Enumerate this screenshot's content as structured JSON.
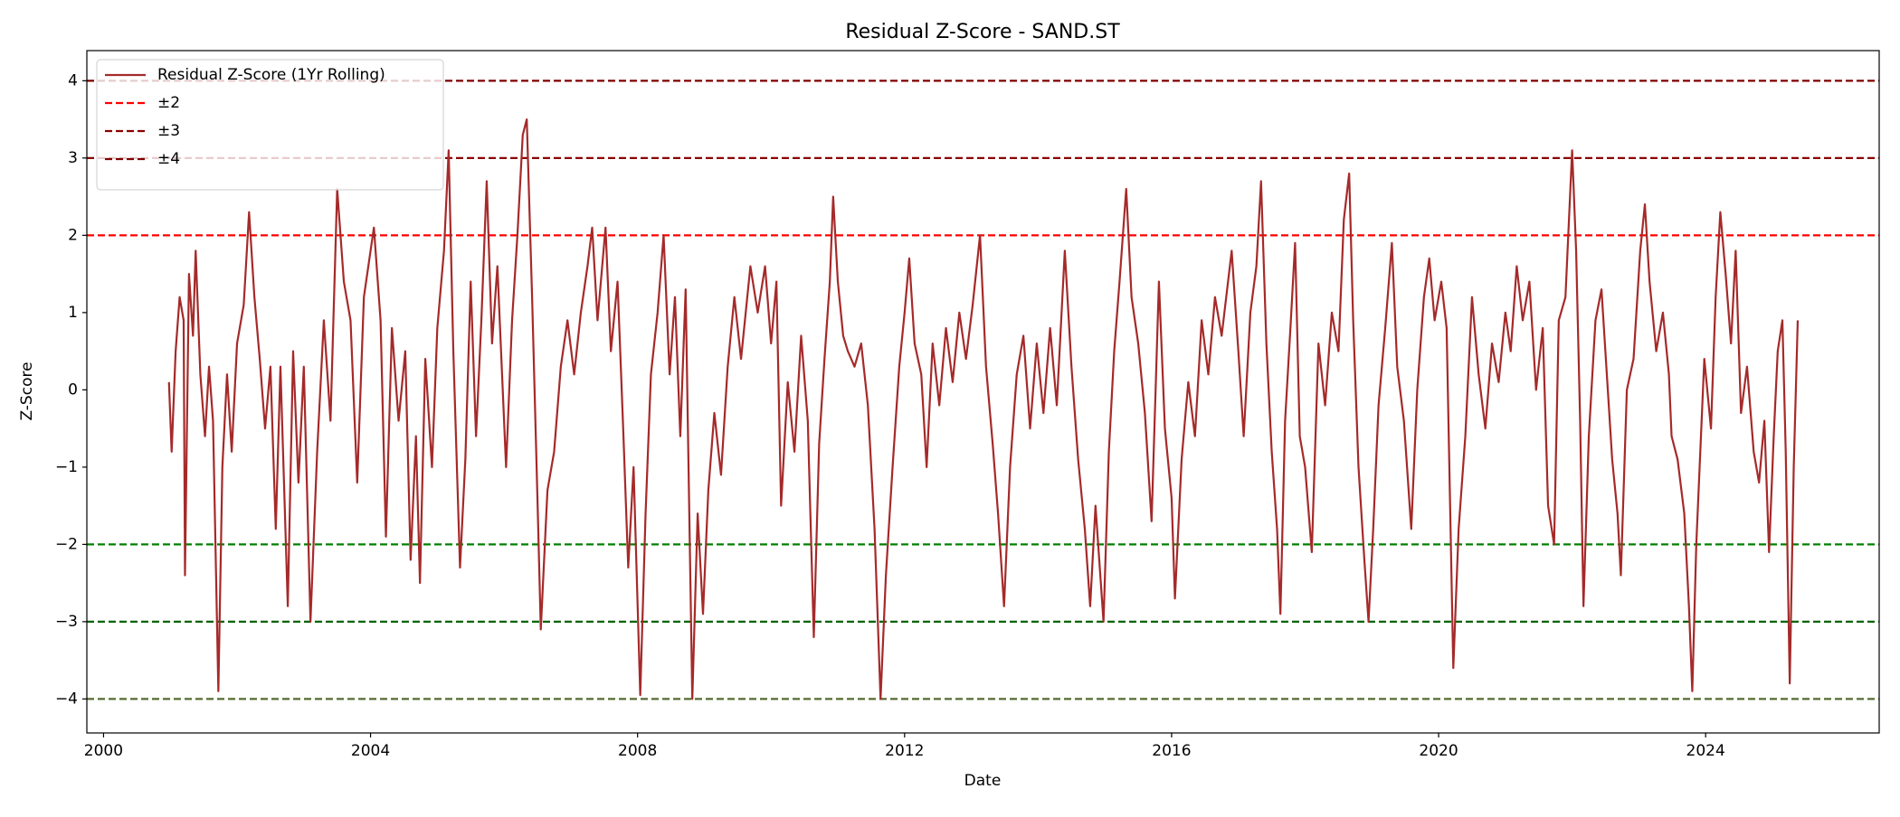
{
  "chart_data": {
    "type": "line",
    "title": "Residual Z-Score - SAND.ST",
    "x_label": "Date",
    "y_label": "Z-Score",
    "xlim": [
      1999.75,
      2026.6
    ],
    "ylim": [
      -4.44,
      4.39
    ],
    "xticks": [
      2000,
      2004,
      2008,
      2012,
      2016,
      2020,
      2024
    ],
    "yticks": [
      {
        "value": -4,
        "label": "−4"
      },
      {
        "value": -3,
        "label": "−3"
      },
      {
        "value": -2,
        "label": "−2"
      },
      {
        "value": -1,
        "label": "−1"
      },
      0,
      1,
      2,
      3,
      4
    ],
    "grid": false,
    "legend": "upper left",
    "reference_lines": [
      {
        "name": "±2",
        "levels": [
          2,
          -2
        ],
        "colors": [
          "#ff0000",
          "#008000"
        ]
      },
      {
        "name": "±3",
        "levels": [
          3,
          -3
        ],
        "colors": [
          "#8b0000",
          "#006400"
        ]
      },
      {
        "name": "±4",
        "levels": [
          4,
          -4
        ],
        "colors": [
          "#800000",
          "#556b2f"
        ]
      }
    ],
    "x": [
      2000.98,
      2001.02,
      2001.08,
      2001.14,
      2001.2,
      2001.22,
      2001.28,
      2001.34,
      2001.38,
      2001.45,
      2001.52,
      2001.58,
      2001.64,
      2001.72,
      2001.78,
      2001.85,
      2001.92,
      2002.0,
      2002.1,
      2002.18,
      2002.26,
      2002.34,
      2002.42,
      2002.5,
      2002.58,
      2002.65,
      2002.76,
      2002.84,
      2002.92,
      2003.0,
      2003.1,
      2003.2,
      2003.3,
      2003.4,
      2003.5,
      2003.6,
      2003.7,
      2003.8,
      2003.9,
      2004.05,
      2004.15,
      2004.23,
      2004.32,
      2004.42,
      2004.52,
      2004.6,
      2004.68,
      2004.74,
      2004.82,
      2004.92,
      2005.0,
      2005.1,
      2005.17,
      2005.24,
      2005.34,
      2005.42,
      2005.5,
      2005.58,
      2005.66,
      2005.74,
      2005.82,
      2005.9,
      2006.03,
      2006.12,
      2006.2,
      2006.28,
      2006.34,
      2006.42,
      2006.5,
      2006.55,
      2006.65,
      2006.75,
      2006.85,
      2006.95,
      2007.05,
      2007.15,
      2007.25,
      2007.32,
      2007.4,
      2007.52,
      2007.6,
      2007.7,
      2007.78,
      2007.86,
      2007.94,
      2008.04,
      2008.12,
      2008.2,
      2008.3,
      2008.39,
      2008.48,
      2008.56,
      2008.64,
      2008.72,
      2008.82,
      2008.9,
      2008.98,
      2009.06,
      2009.15,
      2009.25,
      2009.35,
      2009.45,
      2009.55,
      2009.69,
      2009.8,
      2009.91,
      2010.0,
      2010.08,
      2010.15,
      2010.25,
      2010.35,
      2010.45,
      2010.55,
      2010.64,
      2010.72,
      2010.8,
      2010.88,
      2010.93,
      2011.0,
      2011.08,
      2011.15,
      2011.25,
      2011.35,
      2011.45,
      2011.55,
      2011.64,
      2011.72,
      2011.82,
      2011.92,
      2012.0,
      2012.07,
      2012.15,
      2012.25,
      2012.33,
      2012.42,
      2012.52,
      2012.62,
      2012.72,
      2012.82,
      2012.92,
      2013.02,
      2013.13,
      2013.22,
      2013.32,
      2013.4,
      2013.49,
      2013.58,
      2013.68,
      2013.78,
      2013.88,
      2013.98,
      2014.08,
      2014.18,
      2014.28,
      2014.4,
      2014.5,
      2014.6,
      2014.7,
      2014.78,
      2014.86,
      2014.98,
      2015.06,
      2015.14,
      2015.22,
      2015.32,
      2015.4,
      2015.5,
      2015.6,
      2015.7,
      2015.81,
      2015.9,
      2016.0,
      2016.05,
      2016.15,
      2016.25,
      2016.35,
      2016.45,
      2016.55,
      2016.65,
      2016.75,
      2016.9,
      2017.0,
      2017.08,
      2017.18,
      2017.27,
      2017.34,
      2017.42,
      2017.5,
      2017.58,
      2017.63,
      2017.7,
      2017.78,
      2017.85,
      2017.92,
      2018.0,
      2018.1,
      2018.2,
      2018.3,
      2018.4,
      2018.5,
      2018.58,
      2018.66,
      2018.72,
      2018.8,
      2018.88,
      2018.95,
      2019.02,
      2019.1,
      2019.2,
      2019.3,
      2019.38,
      2019.48,
      2019.59,
      2019.68,
      2019.78,
      2019.86,
      2019.94,
      2020.04,
      2020.12,
      2020.22,
      2020.3,
      2020.4,
      2020.5,
      2020.6,
      2020.7,
      2020.8,
      2020.9,
      2021.0,
      2021.08,
      2021.17,
      2021.26,
      2021.36,
      2021.46,
      2021.56,
      2021.64,
      2021.73,
      2021.8,
      2021.9,
      2022.0,
      2022.06,
      2022.12,
      2022.17,
      2022.25,
      2022.35,
      2022.44,
      2022.52,
      2022.6,
      2022.68,
      2022.73,
      2022.82,
      2022.92,
      2023.02,
      2023.09,
      2023.16,
      2023.26,
      2023.36,
      2023.45,
      2023.49,
      2023.58,
      2023.68,
      2023.75,
      2023.8,
      2023.86,
      2023.92,
      2023.98,
      2024.08,
      2024.15,
      2024.22,
      2024.3,
      2024.38,
      2024.45,
      2024.53,
      2024.62,
      2024.72,
      2024.8,
      2024.88,
      2024.95,
      2025.02,
      2025.08,
      2025.15,
      2025.2,
      2025.26,
      2025.32,
      2025.38
    ],
    "series": [
      {
        "name": "Residual Z-Score (1Yr Rolling)",
        "color": "#a52a2a",
        "values": [
          0.1,
          -0.8,
          0.5,
          1.2,
          0.9,
          -2.4,
          1.5,
          0.7,
          1.8,
          0.2,
          -0.6,
          0.3,
          -0.4,
          -3.9,
          -1.0,
          0.2,
          -0.8,
          0.6,
          1.1,
          2.3,
          1.2,
          0.4,
          -0.5,
          0.3,
          -1.8,
          0.3,
          -2.8,
          0.5,
          -1.2,
          0.3,
          -3.0,
          -0.8,
          0.9,
          -0.4,
          2.6,
          1.4,
          0.9,
          -1.2,
          1.2,
          2.1,
          0.9,
          -1.9,
          0.8,
          -0.4,
          0.5,
          -2.2,
          -0.6,
          -2.5,
          0.4,
          -1.0,
          0.8,
          1.8,
          3.1,
          0.5,
          -2.3,
          -0.9,
          1.4,
          -0.6,
          0.9,
          2.7,
          0.6,
          1.6,
          -1.0,
          0.9,
          2.0,
          3.3,
          3.5,
          1.2,
          -1.4,
          -3.1,
          -1.3,
          -0.8,
          0.3,
          0.9,
          0.2,
          1.0,
          1.6,
          2.1,
          0.9,
          2.1,
          0.5,
          1.4,
          -0.4,
          -2.3,
          -1.0,
          -3.95,
          -1.6,
          0.2,
          1.0,
          2.0,
          0.2,
          1.2,
          -0.6,
          1.3,
          -4.0,
          -1.6,
          -2.9,
          -1.3,
          -0.3,
          -1.1,
          0.3,
          1.2,
          0.4,
          1.6,
          1.0,
          1.6,
          0.6,
          1.4,
          -1.5,
          0.1,
          -0.8,
          0.7,
          -0.4,
          -3.2,
          -0.7,
          0.4,
          1.4,
          2.5,
          1.4,
          0.7,
          0.5,
          0.3,
          0.6,
          -0.2,
          -1.8,
          -4.0,
          -2.4,
          -1.0,
          0.3,
          1.0,
          1.7,
          0.6,
          0.2,
          -1.0,
          0.6,
          -0.2,
          0.8,
          0.1,
          1.0,
          0.4,
          1.1,
          2.0,
          0.3,
          -0.7,
          -1.6,
          -2.8,
          -1.0,
          0.2,
          0.7,
          -0.5,
          0.6,
          -0.3,
          0.8,
          -0.2,
          1.8,
          0.3,
          -0.9,
          -1.8,
          -2.8,
          -1.5,
          -3.0,
          -0.8,
          0.5,
          1.4,
          2.6,
          1.2,
          0.6,
          -0.3,
          -1.7,
          1.4,
          -0.5,
          -1.4,
          -2.7,
          -0.9,
          0.1,
          -0.6,
          0.9,
          0.2,
          1.2,
          0.7,
          1.8,
          0.5,
          -0.6,
          1.0,
          1.6,
          2.7,
          0.6,
          -0.8,
          -1.8,
          -2.9,
          -0.4,
          0.8,
          1.9,
          -0.6,
          -1.0,
          -2.1,
          0.6,
          -0.2,
          1.0,
          0.5,
          2.2,
          2.8,
          0.9,
          -1.0,
          -2.1,
          -3.0,
          -1.8,
          -0.2,
          0.8,
          1.9,
          0.3,
          -0.4,
          -1.8,
          0.0,
          1.2,
          1.7,
          0.9,
          1.4,
          0.8,
          -3.6,
          -1.8,
          -0.6,
          1.2,
          0.2,
          -0.5,
          0.6,
          0.1,
          1.0,
          0.5,
          1.6,
          0.9,
          1.4,
          0.0,
          0.8,
          -1.5,
          -2.0,
          0.9,
          1.2,
          3.1,
          1.8,
          -0.4,
          -2.8,
          -0.6,
          0.9,
          1.3,
          0.2,
          -0.9,
          -1.6,
          -2.4,
          0.0,
          0.4,
          1.8,
          2.4,
          1.4,
          0.5,
          1.0,
          0.2,
          -0.6,
          -0.9,
          -1.6,
          -2.8,
          -3.9,
          -2.0,
          -0.8,
          0.4,
          -0.5,
          1.2,
          2.3,
          1.5,
          0.6,
          1.8,
          -0.3,
          0.3,
          -0.8,
          -1.2,
          -0.4,
          -2.1,
          -0.6,
          0.5,
          0.9,
          -0.8,
          -3.8,
          -1.0,
          0.9
        ]
      }
    ]
  }
}
